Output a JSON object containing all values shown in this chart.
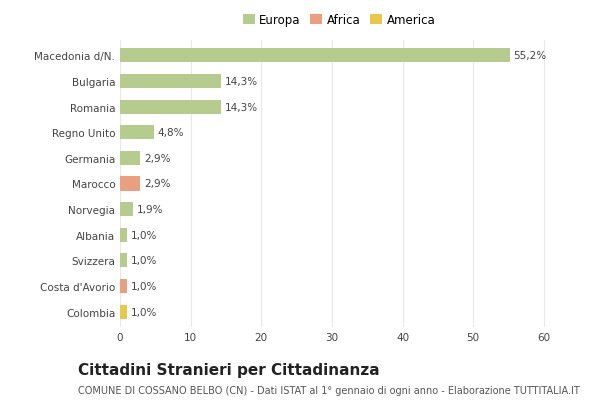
{
  "categories": [
    "Macedonia d/N.",
    "Bulgaria",
    "Romania",
    "Regno Unito",
    "Germania",
    "Marocco",
    "Norvegia",
    "Albania",
    "Svizzera",
    "Costa d'Avorio",
    "Colombia"
  ],
  "values": [
    55.2,
    14.3,
    14.3,
    4.8,
    2.9,
    2.9,
    1.9,
    1.0,
    1.0,
    1.0,
    1.0
  ],
  "labels": [
    "55,2%",
    "14,3%",
    "14,3%",
    "4,8%",
    "2,9%",
    "2,9%",
    "1,9%",
    "1,0%",
    "1,0%",
    "1,0%",
    "1,0%"
  ],
  "colors": [
    "#b5cc8e",
    "#b5cc8e",
    "#b5cc8e",
    "#b5cc8e",
    "#b5cc8e",
    "#e8a080",
    "#b5cc8e",
    "#b5cc8e",
    "#b5cc8e",
    "#e8a080",
    "#e8c84a"
  ],
  "continent": [
    "Europa",
    "Europa",
    "Europa",
    "Europa",
    "Europa",
    "Africa",
    "Europa",
    "Europa",
    "Europa",
    "Africa",
    "America"
  ],
  "legend_labels": [
    "Europa",
    "Africa",
    "America"
  ],
  "legend_colors": [
    "#b5cc8e",
    "#e8a080",
    "#e8c84a"
  ],
  "xlim": [
    0,
    62
  ],
  "xticks": [
    0,
    10,
    20,
    30,
    40,
    50,
    60
  ],
  "title": "Cittadini Stranieri per Cittadinanza",
  "subtitle": "COMUNE DI COSSANO BELBO (CN) - Dati ISTAT al 1° gennaio di ogni anno - Elaborazione TUTTITALIA.IT",
  "bg_color": "#ffffff",
  "grid_color": "#e8e8e8",
  "bar_height": 0.55,
  "title_fontsize": 11,
  "subtitle_fontsize": 7,
  "label_fontsize": 7.5,
  "tick_fontsize": 7.5,
  "legend_fontsize": 8.5
}
